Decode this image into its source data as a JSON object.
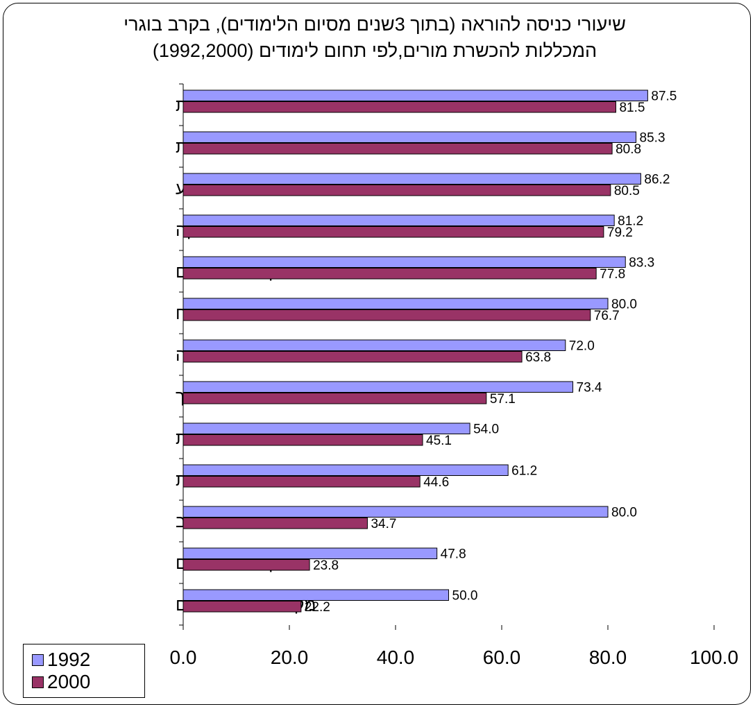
{
  "chart_data": {
    "type": "bar",
    "orientation": "horizontal",
    "title_lines": [
      "שיעורי כניסה להוראה (בתוך 3שנים מסיום הלימודים),  בקרב בוגרי",
      "המכללות להכשרת מורים,לפי תחום לימודים (1992,2000)"
    ],
    "categories": [
      "עברית",
      "אנגלית",
      "מדעי הטבע",
      "מתמטיקה",
      "מקצועות אחרים",
      "מדעי הרוח",
      "מדעי החברה",
      "חינוך",
      "אומנות",
      "לימודי יהדות",
      "מדעי המחשב",
      "מקצועות טכניים",
      "מקצועות טכנולוגיים"
    ],
    "series": [
      {
        "name": "1992",
        "color": "#9999ff",
        "values": [
          87.5,
          85.3,
          86.2,
          81.2,
          83.3,
          80.0,
          72.0,
          73.4,
          54.0,
          61.2,
          80.0,
          47.8,
          50.0
        ],
        "labels": [
          "87.5",
          "85.3",
          "86.2",
          "81.2",
          "83.3",
          "80.0",
          "72.0",
          "73.4",
          "54.0",
          "61.2",
          "80.0",
          "47.8",
          "50.0"
        ]
      },
      {
        "name": "2000",
        "color": "#993366",
        "values": [
          81.5,
          80.8,
          80.5,
          79.2,
          77.8,
          76.7,
          63.8,
          57.1,
          45.1,
          44.6,
          34.7,
          23.8,
          22.2
        ],
        "labels": [
          "81.5",
          "80.8",
          "80.5",
          "79.2",
          "77.8",
          "76.7",
          "63.8",
          "57.1",
          "45.1",
          "44.6",
          "34.7",
          "23.8",
          "22.2"
        ]
      }
    ],
    "x_ticks": [
      "0.0",
      "20.0",
      "40.0",
      "60.0",
      "80.0",
      "100.0"
    ],
    "xlim": [
      0,
      100
    ],
    "grid": false,
    "legend_position": "bottom-left"
  }
}
